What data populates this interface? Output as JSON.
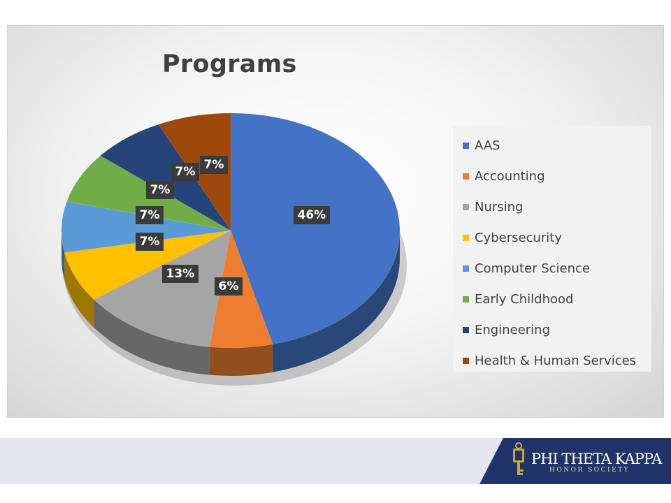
{
  "chart_data": {
    "type": "pie",
    "title": "Programs",
    "legend_position": "right",
    "categories": [
      "AAS",
      "Accounting",
      "Nursing",
      "Cybersecurity",
      "Computer Science",
      "Early Childhood",
      "Engineering",
      "Health & Human Services"
    ],
    "values": [
      46,
      6,
      13,
      7,
      7,
      7,
      7,
      7
    ],
    "data_labels": [
      "46%",
      "6%",
      "13%",
      "7%",
      "7%",
      "7%",
      "7%",
      "7%"
    ],
    "colors": [
      "#4472C4",
      "#ED7D31",
      "#A5A5A5",
      "#FFC000",
      "#5B9BD5",
      "#70AD47",
      "#264478",
      "#9E480E"
    ]
  },
  "logo": {
    "name": "PHI THETA KAPPA",
    "subtitle": "HONOR SOCIETY",
    "icon": "key-icon"
  }
}
